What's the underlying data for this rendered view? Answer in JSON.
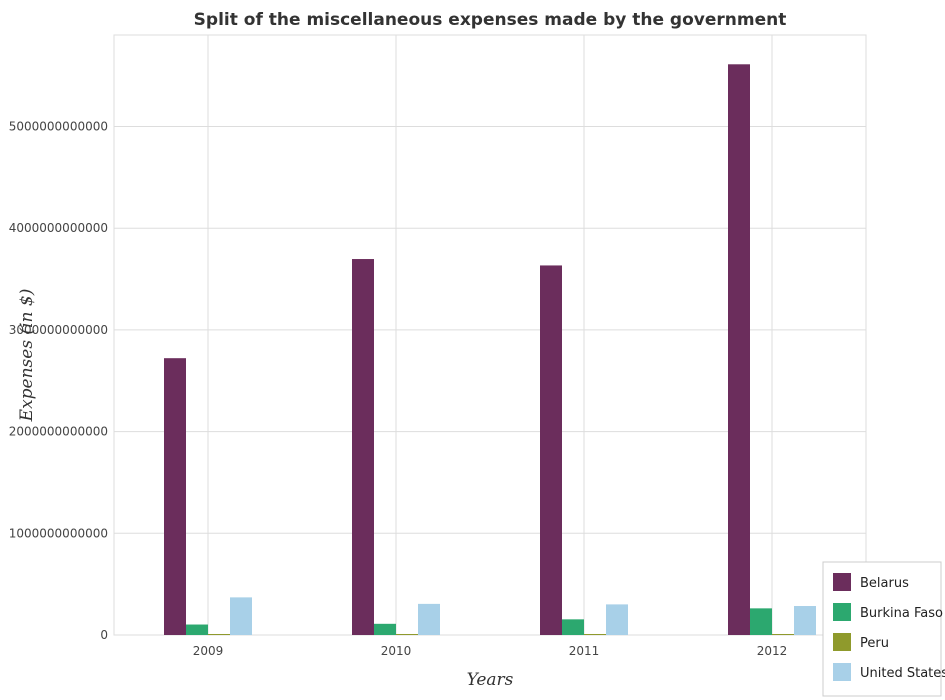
{
  "chart_data": {
    "type": "bar",
    "title": "Split of the miscellaneous expenses made by the government",
    "xlabel": "Years",
    "ylabel": "Expenses (in $)",
    "categories": [
      "2009",
      "2010",
      "2011",
      "2012"
    ],
    "ylim": [
      0,
      5900000000000
    ],
    "yticks": [
      0,
      1000000000000,
      2000000000000,
      3000000000000,
      4000000000000,
      5000000000000
    ],
    "ytick_labels": [
      "0",
      "1000000000000",
      "2000000000000",
      "3000000000000",
      "4000000000000",
      "5000000000000"
    ],
    "grid": true,
    "legend_position": "bottom-right",
    "series": [
      {
        "name": "Belarus",
        "color": "#6b2d5c",
        "values": [
          2722000000000,
          3697000000000,
          3634000000000,
          5612000000000
        ]
      },
      {
        "name": "Burkina Faso",
        "color": "#2ca86f",
        "values": [
          103000000000,
          110000000000,
          154000000000,
          262000000000
        ]
      },
      {
        "name": "Peru",
        "color": "#8f9a2c",
        "values": [
          7000000000,
          6000000000,
          8000000000,
          7000000000
        ]
      },
      {
        "name": "United States",
        "color": "#a8d0e8",
        "values": [
          370000000000,
          306000000000,
          301000000000,
          285000000000
        ]
      }
    ]
  }
}
